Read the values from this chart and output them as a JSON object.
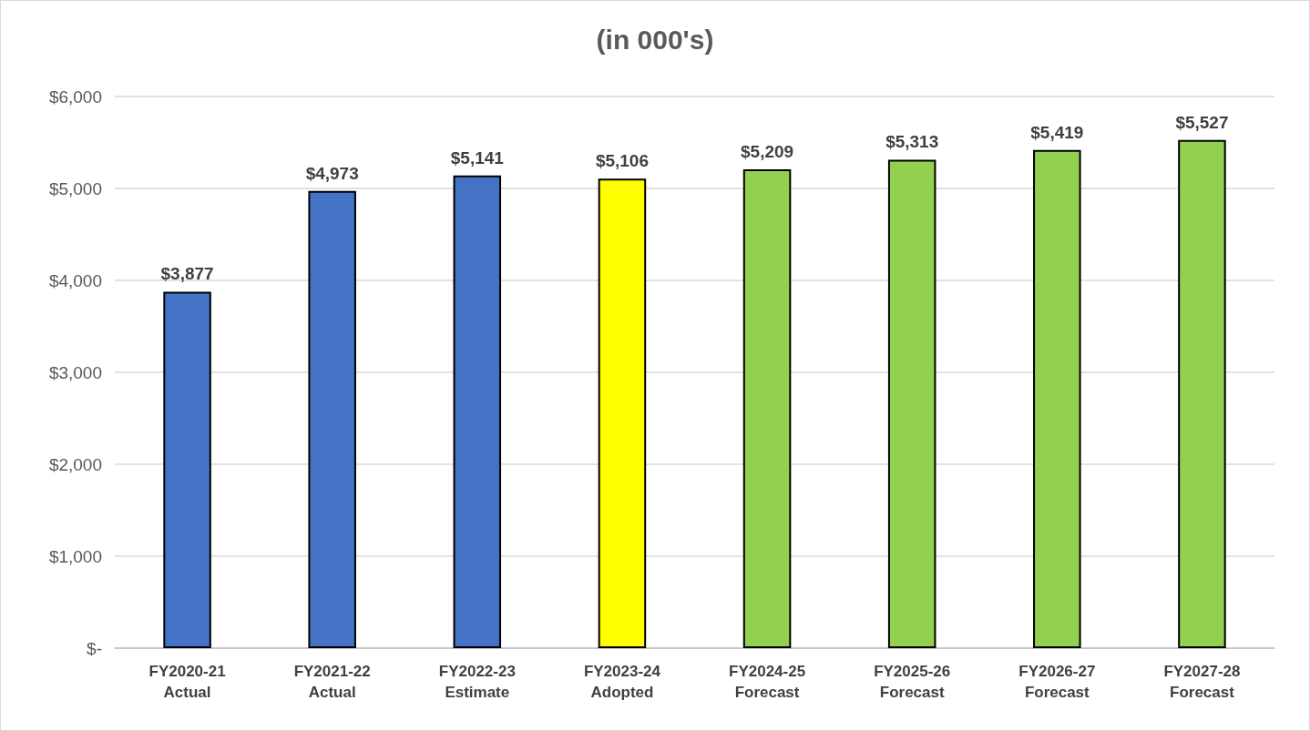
{
  "chart_data": {
    "type": "bar",
    "title": "(in 000's)",
    "categories": [
      "FY2020-21\nActual",
      "FY2021-22\nActual",
      "FY2022-23\nEstimate",
      "FY2023-24\nAdopted",
      "FY2024-25\nForecast",
      "FY2025-26\nForecast",
      "FY2026-27\nForecast",
      "FY2027-28\nForecast"
    ],
    "values": [
      3877,
      4973,
      5141,
      5106,
      5209,
      5313,
      5419,
      5527
    ],
    "value_labels": [
      "$3,877",
      "$4,973",
      "$5,141",
      "$5,106",
      "$5,209",
      "$5,313",
      "$5,419",
      "$5,527"
    ],
    "colors": [
      "#4472c4",
      "#4472c4",
      "#4472c4",
      "#ffff00",
      "#92d050",
      "#92d050",
      "#92d050",
      "#92d050"
    ],
    "ylim": [
      0,
      6000
    ],
    "yticks": [
      {
        "value": 0,
        "label": "$-"
      },
      {
        "value": 1000,
        "label": "$1,000"
      },
      {
        "value": 2000,
        "label": "$2,000"
      },
      {
        "value": 3000,
        "label": "$3,000"
      },
      {
        "value": 4000,
        "label": "$4,000"
      },
      {
        "value": 5000,
        "label": "$5,000"
      },
      {
        "value": 6000,
        "label": "$6,000"
      }
    ],
    "grid": "y"
  }
}
